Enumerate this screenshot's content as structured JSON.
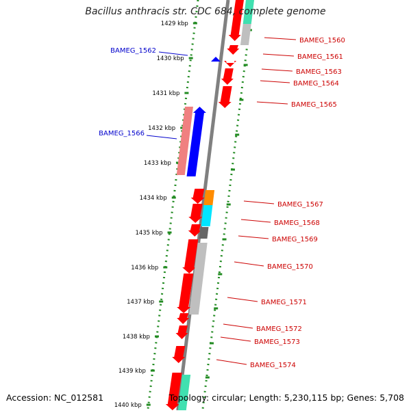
{
  "title": "Bacillus anthracis str. CDC 684, complete genome",
  "footer": {
    "accession": "Accession: NC_012581",
    "summary": "Topology: circular; Length: 5,230,115 bp; Genes: 5,708"
  },
  "colors": {
    "backbone": "#808080",
    "forward_gene": "#0000ff",
    "reverse_gene": "#ff0000",
    "forward_label": "#0000cc",
    "reverse_label": "#cc0000",
    "dots": "#228b22",
    "feature_pink": "#f08080",
    "feature_gray": "#bfbfbf",
    "feature_orange": "#ff8c00",
    "feature_cyan": "#00e5ff",
    "feature_dark": "#666666",
    "feature_teal": "#40e0b0"
  },
  "ticks": [
    {
      "label": "1429 kbp"
    },
    {
      "label": "1430 kbp"
    },
    {
      "label": "1431 kbp"
    },
    {
      "label": "1432 kbp"
    },
    {
      "label": "1433 kbp"
    },
    {
      "label": "1434 kbp"
    },
    {
      "label": "1435 kbp"
    },
    {
      "label": "1436 kbp"
    },
    {
      "label": "1437 kbp"
    },
    {
      "label": "1438 kbp"
    },
    {
      "label": "1439 kbp"
    },
    {
      "label": "1440 kbp"
    }
  ],
  "gene_labels": [
    {
      "name": "BAMEG_1560",
      "strand": "reverse"
    },
    {
      "name": "BAMEG_1561",
      "strand": "reverse"
    },
    {
      "name": "BAMEG_1562",
      "strand": "forward"
    },
    {
      "name": "BAMEG_1563",
      "strand": "reverse"
    },
    {
      "name": "BAMEG_1564",
      "strand": "reverse"
    },
    {
      "name": "BAMEG_1565",
      "strand": "reverse"
    },
    {
      "name": "BAMEG_1566",
      "strand": "forward"
    },
    {
      "name": "BAMEG_1567",
      "strand": "reverse"
    },
    {
      "name": "BAMEG_1568",
      "strand": "reverse"
    },
    {
      "name": "BAMEG_1569",
      "strand": "reverse"
    },
    {
      "name": "BAMEG_1570",
      "strand": "reverse"
    },
    {
      "name": "BAMEG_1571",
      "strand": "reverse"
    },
    {
      "name": "BAMEG_1572",
      "strand": "reverse"
    },
    {
      "name": "BAMEG_1573",
      "strand": "reverse"
    },
    {
      "name": "BAMEG_1574",
      "strand": "reverse"
    }
  ]
}
